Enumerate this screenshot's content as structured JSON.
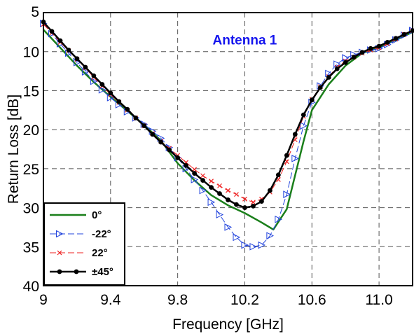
{
  "chart_data": {
    "type": "line",
    "title": "",
    "annotation": "Antenna 1",
    "xlabel": "Frequency  [GHz]",
    "ylabel": "Return Loss [dB]",
    "xlim": [
      9.0,
      11.2
    ],
    "ylim": [
      5,
      40
    ],
    "y_inverted": true,
    "grid": true,
    "legend_position": "bottom-left",
    "x_ticks": [
      9.0,
      9.4,
      9.8,
      10.2,
      10.6,
      11.0
    ],
    "x_tick_labels": [
      "9",
      "9.4",
      "9.8",
      "10.2",
      "10.6",
      "11.0"
    ],
    "y_ticks": [
      5,
      10,
      15,
      20,
      25,
      30,
      35,
      40
    ],
    "y_tick_labels": [
      "5",
      "10",
      "15",
      "20",
      "25",
      "30",
      "35",
      "40"
    ],
    "series": [
      {
        "name": "0°",
        "color": "#1a7f1a",
        "marker": "none",
        "dash": "solid",
        "x": [
          9.0,
          9.1,
          9.2,
          9.3,
          9.4,
          9.5,
          9.6,
          9.7,
          9.8,
          9.9,
          10.0,
          10.1,
          10.2,
          10.3,
          10.37,
          10.45,
          10.55,
          10.6,
          10.7,
          10.8,
          10.9,
          11.0,
          11.1,
          11.2
        ],
        "y": [
          7.2,
          9.5,
          11.8,
          13.9,
          15.8,
          17.6,
          19.4,
          21.4,
          24.3,
          26.5,
          28.4,
          29.7,
          30.7,
          31.9,
          32.8,
          30.2,
          21.5,
          17.5,
          14.2,
          11.8,
          10.2,
          9.5,
          8.5,
          7.5
        ]
      },
      {
        "name": "-22°",
        "color": "#2244dd",
        "marker": "triangle",
        "dash": "dashed",
        "x": [
          9.0,
          9.05,
          9.1,
          9.15,
          9.2,
          9.25,
          9.3,
          9.35,
          9.4,
          9.45,
          9.5,
          9.55,
          9.6,
          9.65,
          9.7,
          9.75,
          9.8,
          9.85,
          9.9,
          9.95,
          10.0,
          10.05,
          10.1,
          10.15,
          10.2,
          10.25,
          10.3,
          10.35,
          10.4,
          10.45,
          10.5,
          10.55,
          10.6,
          10.65,
          10.7,
          10.75,
          10.8,
          10.85,
          10.9,
          10.95,
          11.0,
          11.05,
          11.1,
          11.15,
          11.2
        ],
        "y": [
          6.4,
          7.7,
          9.0,
          10.2,
          11.4,
          12.6,
          13.8,
          14.9,
          15.9,
          16.8,
          17.7,
          18.5,
          19.3,
          20.2,
          21.1,
          22.3,
          23.6,
          25.0,
          26.4,
          27.8,
          29.3,
          30.9,
          32.5,
          33.8,
          34.8,
          35.0,
          34.8,
          33.6,
          31.5,
          28.3,
          23.7,
          19.5,
          16.5,
          14.4,
          12.8,
          11.6,
          10.8,
          10.4,
          10.1,
          9.8,
          9.6,
          9.1,
          8.5,
          7.9,
          7.3
        ]
      },
      {
        "name": "22°",
        "color": "#ee2222",
        "marker": "x",
        "dash": "dashed",
        "x": [
          9.0,
          9.05,
          9.1,
          9.15,
          9.2,
          9.25,
          9.3,
          9.35,
          9.4,
          9.45,
          9.5,
          9.55,
          9.6,
          9.65,
          9.7,
          9.75,
          9.8,
          9.85,
          9.9,
          9.95,
          10.0,
          10.05,
          10.1,
          10.15,
          10.2,
          10.25,
          10.3,
          10.35,
          10.4,
          10.45,
          10.5,
          10.55,
          10.6,
          10.65,
          10.7,
          10.75,
          10.8,
          10.85,
          10.9,
          10.95,
          11.0,
          11.05,
          11.1,
          11.15,
          11.2
        ],
        "y": [
          6.5,
          7.6,
          8.8,
          9.9,
          11.0,
          12.1,
          13.3,
          14.4,
          15.5,
          16.5,
          17.5,
          18.5,
          19.5,
          20.5,
          21.5,
          22.4,
          23.3,
          24.2,
          25.1,
          25.9,
          26.6,
          27.2,
          27.8,
          28.3,
          28.9,
          29.3,
          28.9,
          28.0,
          26.4,
          24.1,
          21.3,
          18.3,
          16.1,
          14.5,
          13.2,
          12.0,
          11.2,
          10.7,
          10.2,
          9.8,
          9.5,
          9.0,
          8.4,
          7.8,
          7.3
        ]
      },
      {
        "name": "±45°",
        "color": "#000000",
        "marker": "circle",
        "dash": "solid",
        "x": [
          9.0,
          9.05,
          9.1,
          9.15,
          9.2,
          9.25,
          9.3,
          9.35,
          9.4,
          9.45,
          9.5,
          9.55,
          9.6,
          9.65,
          9.7,
          9.75,
          9.8,
          9.85,
          9.9,
          9.95,
          10.0,
          10.05,
          10.1,
          10.15,
          10.2,
          10.25,
          10.3,
          10.35,
          10.4,
          10.45,
          10.5,
          10.55,
          10.6,
          10.65,
          10.7,
          10.75,
          10.8,
          10.85,
          10.9,
          10.95,
          11.0,
          11.05,
          11.1,
          11.15,
          11.2
        ],
        "y": [
          6.2,
          7.4,
          8.6,
          9.8,
          10.9,
          12.0,
          13.1,
          14.2,
          15.3,
          16.4,
          17.4,
          18.5,
          19.5,
          20.6,
          21.6,
          22.6,
          23.6,
          24.6,
          25.6,
          26.5,
          27.4,
          28.2,
          29.0,
          29.6,
          30.0,
          29.8,
          29.2,
          27.8,
          25.8,
          23.3,
          20.6,
          18.1,
          16.2,
          14.6,
          13.3,
          12.2,
          11.4,
          10.7,
          10.1,
          9.6,
          9.3,
          8.8,
          8.3,
          7.8,
          7.3
        ]
      }
    ]
  }
}
